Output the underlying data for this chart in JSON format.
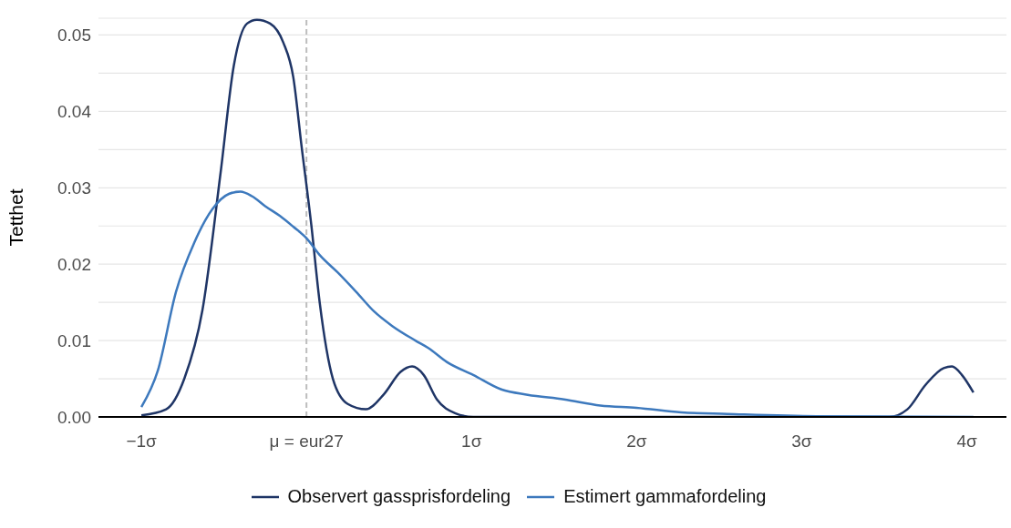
{
  "chart_data": {
    "type": "line",
    "ylabel": "Tetthet",
    "xlim": [
      -1.26,
      4.24
    ],
    "ylim": [
      0,
      0.0522
    ],
    "xticks": [
      {
        "value": -1,
        "label": "−1σ"
      },
      {
        "value": 0,
        "label": "μ = eur27"
      },
      {
        "value": 1,
        "label": "1σ"
      },
      {
        "value": 2,
        "label": "2σ"
      },
      {
        "value": 3,
        "label": "3σ"
      },
      {
        "value": 4,
        "label": "4σ"
      }
    ],
    "yticks": [
      {
        "value": 0,
        "label": "0.00"
      },
      {
        "value": 0.005,
        "label": null
      },
      0.01,
      {
        "value": 0.015,
        "label": null
      },
      0.02,
      {
        "value": 0.025,
        "label": null
      },
      0.03,
      {
        "value": 0.035,
        "label": null
      },
      0.04,
      {
        "value": 0.045,
        "label": null
      },
      0.05
    ],
    "grid": "y",
    "legend": "bottom",
    "marker": "none",
    "line_style": "solid",
    "ref_lines": [
      {
        "axis": "x",
        "value": 0,
        "label": null,
        "color": "#bdbdbd",
        "line_style": "dashed"
      }
    ],
    "series": [
      {
        "name": "Observert gassprisfordeling",
        "color": "#1f3566",
        "x": [
          -1.0,
          -0.85,
          -0.74,
          -0.63,
          -0.52,
          -0.44,
          -0.36,
          -0.3,
          -0.22,
          -0.14,
          -0.08,
          -0.03,
          0.03,
          0.08,
          0.16,
          0.25,
          0.36,
          0.47,
          0.57,
          0.64,
          0.71,
          0.79,
          0.9,
          1.01,
          3.53,
          3.64,
          3.75,
          3.86,
          3.91,
          3.97,
          4.04
        ],
        "values": [
          0.0002,
          0.001,
          0.005,
          0.014,
          0.032,
          0.046,
          0.0515,
          0.052,
          0.0515,
          0.049,
          0.0445,
          0.0355,
          0.025,
          0.015,
          0.005,
          0.0017,
          0.001,
          0.003,
          0.0059,
          0.0066,
          0.0055,
          0.0023,
          0.0005,
          0,
          0,
          0.001,
          0.0042,
          0.0064,
          0.0066,
          0.0055,
          0.0032
        ]
      },
      {
        "name": "Estimert gammafordeling",
        "color": "#3d79bd",
        "x": [
          -1.0,
          -0.9,
          -0.79,
          -0.68,
          -0.57,
          -0.47,
          -0.4,
          -0.33,
          -0.25,
          -0.16,
          -0.08,
          0,
          0.08,
          0.19,
          0.3,
          0.41,
          0.52,
          0.66,
          0.74,
          0.85,
          1.01,
          1.18,
          1.34,
          1.56,
          1.78,
          2.0,
          2.27,
          2.55,
          3.09,
          4.04
        ],
        "values": [
          0.0013,
          0.0061,
          0.0164,
          0.0228,
          0.0272,
          0.0292,
          0.0295,
          0.0289,
          0.0276,
          0.0263,
          0.0249,
          0.0234,
          0.0212,
          0.0189,
          0.0164,
          0.0138,
          0.0119,
          0.01,
          0.009,
          0.0072,
          0.0055,
          0.0036,
          0.0029,
          0.0023,
          0.0015,
          0.0012,
          0.0006,
          0.0004,
          0.0001,
          0
        ]
      }
    ]
  }
}
